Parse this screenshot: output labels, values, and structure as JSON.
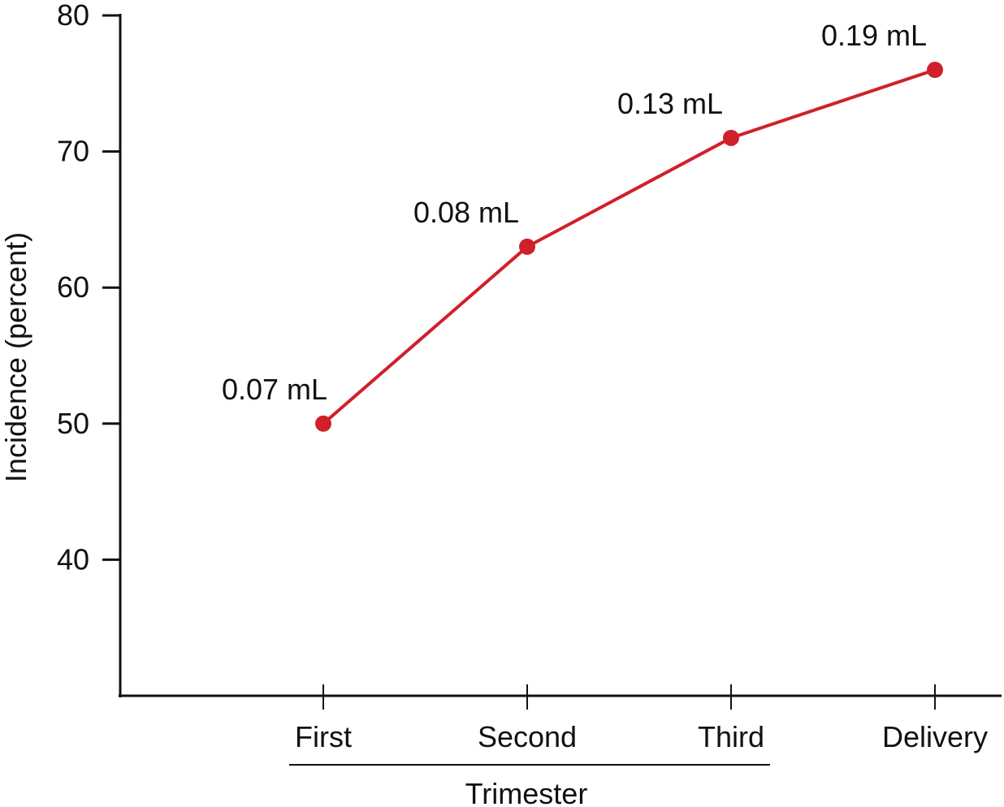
{
  "chart_data": {
    "type": "line",
    "title": "",
    "xlabel": "",
    "ylabel": "Incidence (percent)",
    "group_label": "Trimester",
    "categories": [
      "First",
      "Second",
      "Third",
      "Delivery"
    ],
    "series": [
      {
        "values": [
          50,
          63,
          71,
          76
        ],
        "data_labels": [
          "0.07 mL",
          "0.08 mL",
          "0.13 mL",
          "0.19 mL"
        ]
      }
    ],
    "ylim": [
      30,
      80
    ],
    "yticks": [
      40,
      50,
      60,
      70,
      80
    ],
    "grid": false,
    "legend": "none",
    "colors": {
      "line": "#d0202a",
      "axis": "#111111"
    }
  }
}
